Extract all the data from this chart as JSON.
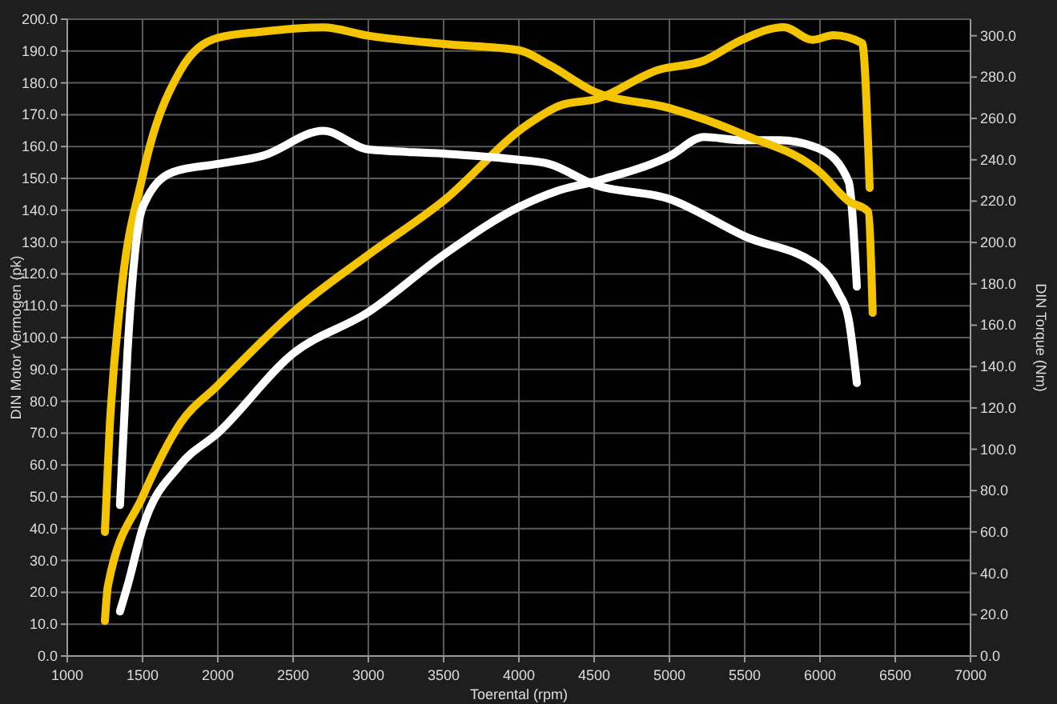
{
  "chart_data": {
    "type": "line",
    "xlabel": "Toerental (rpm)",
    "ylabel": "DIN Motor Vermogen (pk)",
    "y2label": "DIN Torque (Nm)",
    "xlim": [
      1000,
      7000
    ],
    "xticks": [
      1000,
      1500,
      2000,
      2500,
      3000,
      3500,
      4000,
      4500,
      5000,
      5500,
      6000,
      6500,
      7000
    ],
    "ylim": [
      0,
      200
    ],
    "yticks": [
      {
        "value": 0,
        "label": "0.0"
      },
      {
        "value": 10,
        "label": "10.0"
      },
      {
        "value": 20,
        "label": "20.0"
      },
      {
        "value": 30,
        "label": "30.0"
      },
      {
        "value": 40,
        "label": "40.0"
      },
      {
        "value": 50,
        "label": "50.0"
      },
      {
        "value": 60,
        "label": "60.0"
      },
      {
        "value": 70,
        "label": "70.0"
      },
      {
        "value": 80,
        "label": "80.0"
      },
      {
        "value": 90,
        "label": "90.0"
      },
      {
        "value": 100,
        "label": "100.0"
      },
      {
        "value": 110,
        "label": "110.0"
      },
      {
        "value": 120,
        "label": "120.0"
      },
      {
        "value": 130,
        "label": "130.0"
      },
      {
        "value": 140,
        "label": "140.0"
      },
      {
        "value": 150,
        "label": "150.0"
      },
      {
        "value": 160,
        "label": "160.0"
      },
      {
        "value": 170,
        "label": "170.0"
      },
      {
        "value": 180,
        "label": "180.0"
      },
      {
        "value": 190,
        "label": "190.0"
      },
      {
        "value": 200,
        "label": "200.0"
      }
    ],
    "y2lim": [
      0,
      308
    ],
    "y2ticks": [
      {
        "value": 0,
        "label": "0.0"
      },
      {
        "value": 20,
        "label": "20.0"
      },
      {
        "value": 40,
        "label": "40.0"
      },
      {
        "value": 60,
        "label": "60.0"
      },
      {
        "value": 80,
        "label": "80.0"
      },
      {
        "value": 100,
        "label": "100.0"
      },
      {
        "value": 120,
        "label": "120.0"
      },
      {
        "value": 140,
        "label": "140.0"
      },
      {
        "value": 160,
        "label": "160.0"
      },
      {
        "value": 180,
        "label": "180.0"
      },
      {
        "value": 200,
        "label": "200.0"
      },
      {
        "value": 220,
        "label": "220.0"
      },
      {
        "value": 240,
        "label": "240.0"
      },
      {
        "value": 260,
        "label": "260.0"
      },
      {
        "value": 280,
        "label": "280.0"
      },
      {
        "value": 300,
        "label": "300.0"
      }
    ],
    "grid": true,
    "line_style": "solid",
    "series": [
      {
        "color": "#f5c400",
        "x": [
          1250,
          1270,
          1500,
          1750,
          2000,
          2500,
          3000,
          3500,
          4060,
          4280,
          4520,
          4920,
          5230,
          5480,
          5760,
          5950,
          6090,
          6280,
          6330
        ],
        "values": [
          11,
          22,
          50,
          73,
          85,
          108,
          126,
          143,
          167,
          173,
          175,
          184,
          187,
          193.5,
          197.5,
          193.5,
          195,
          192.5,
          147
        ]
      },
      {
        "color": "#ffffff",
        "x": [
          1350,
          1400,
          1500,
          1750,
          2000,
          2500,
          3000,
          3500,
          4000,
          4250,
          4500,
          5000,
          5230,
          5480,
          5730,
          6010,
          6190,
          6245
        ],
        "values": [
          14,
          22,
          40,
          60,
          70,
          95,
          108,
          126,
          141,
          146,
          149,
          157,
          163,
          162,
          162,
          159,
          149,
          116
        ]
      },
      {
        "color": "#f5c400",
        "axis": "y2",
        "x": [
          1250,
          1280,
          1350,
          1500,
          1750,
          2000,
          2300,
          2700,
          3000,
          3500,
          4000,
          4200,
          4500,
          5000,
          5500,
          6000,
          6190,
          6320,
          6350
        ],
        "values": [
          60,
          108,
          170,
          232,
          283,
          299,
          302,
          304,
          300,
          296,
          293,
          286,
          273,
          265,
          252,
          234,
          220,
          215,
          166
        ]
      },
      {
        "color": "#ffffff",
        "axis": "y2",
        "x": [
          1350,
          1400,
          1500,
          1700,
          2000,
          2300,
          2700,
          3000,
          3500,
          4000,
          4200,
          4500,
          5000,
          5500,
          6000,
          6120,
          6190,
          6245
        ],
        "values": [
          73,
          147,
          217,
          234,
          238,
          242,
          254,
          245,
          243,
          240,
          238,
          228,
          221,
          203,
          188,
          176,
          163,
          132
        ]
      }
    ]
  }
}
